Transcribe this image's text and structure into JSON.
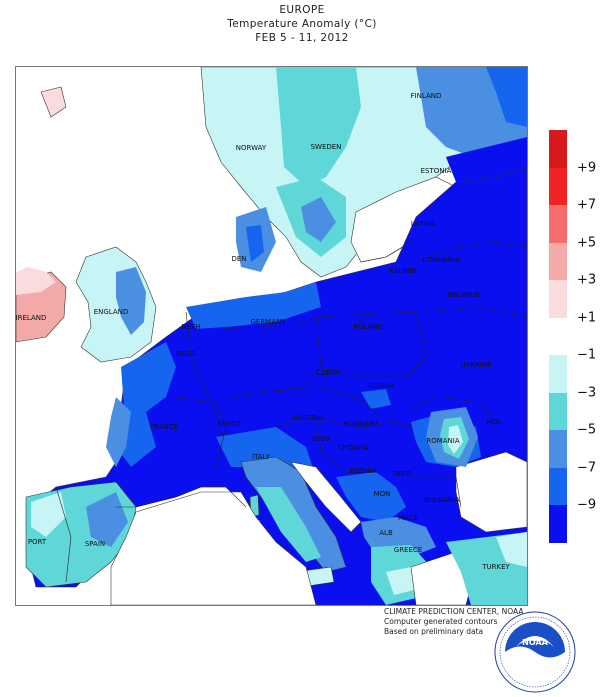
{
  "header": {
    "region": "EUROPE",
    "subtitle": "Temperature Anomaly (°C)",
    "period": "FEB 5 - 11, 2012"
  },
  "legend": {
    "levels": [
      {
        "label": "+9",
        "color": "#d7191c"
      },
      {
        "label": "+7",
        "color": "#f02424"
      },
      {
        "label": "+5",
        "color": "#f56c6c"
      },
      {
        "label": "+3",
        "color": "#f4a9a9"
      },
      {
        "label": "+1",
        "color": "#fadcdc"
      },
      {
        "label": "-1",
        "color": "#ffffff"
      },
      {
        "label": "-3",
        "color": "#c7f5f5"
      },
      {
        "label": "-5",
        "color": "#5fd7d8"
      },
      {
        "label": "-7",
        "color": "#4a8fe2"
      },
      {
        "label": "-9",
        "color": "#1565ee"
      },
      {
        "label": "",
        "color": "#0a0ff0"
      }
    ],
    "tick_labels": [
      "+9",
      "+7",
      "+5",
      "+3",
      "+1",
      "-1",
      "-3",
      "-5",
      "-7",
      "-9"
    ]
  },
  "map_labels": {
    "finland": "FINLAND",
    "norway": "NORWAY",
    "sweden": "SWEDEN",
    "estonia": "ESTONIA",
    "latvia": "LATVIA",
    "lithuania": "LITHUANIA",
    "denmark": "DEN",
    "kaliningrad": "KALININ",
    "ireland": "IRELAND",
    "england": "ENGLAND",
    "netherlands": "NETH",
    "germany": "GERMANY",
    "poland": "POLAND",
    "belarus": "BELARUS",
    "belgium": "BELG",
    "czech": "CZECH",
    "slovakia": "SLOVAK",
    "ukraine": "UKRAINE",
    "france": "FRANCE",
    "switzerland": "SWITZ",
    "austria": "AUSTRIA",
    "hungary": "HUNGARY",
    "slovenia": "SLOV",
    "croatia": "CROATIA",
    "romania": "ROMANIA",
    "moldova": "MOL",
    "italy": "ITALY",
    "bosnia": "BOSNIA",
    "serbia": "SERB",
    "montenegro": "MON",
    "bulgaria": "BULGARIA",
    "macedonia": "MACE",
    "albania": "ALB",
    "greece": "GREECE",
    "portugal": "PORT",
    "spain": "SPAIN",
    "turkey": "TURKEY"
  },
  "credits": {
    "line1": "CLIMATE PREDICTION CENTER, NOAA",
    "line2": "Computer generated contours",
    "line3": "Based on preliminary data"
  },
  "logo": {
    "name": "NOAA",
    "ring_text": "NATIONAL OCEANIC AND ATMOSPHERIC ADMINISTRATION · U.S. DEPARTMENT OF COMMERCE"
  }
}
